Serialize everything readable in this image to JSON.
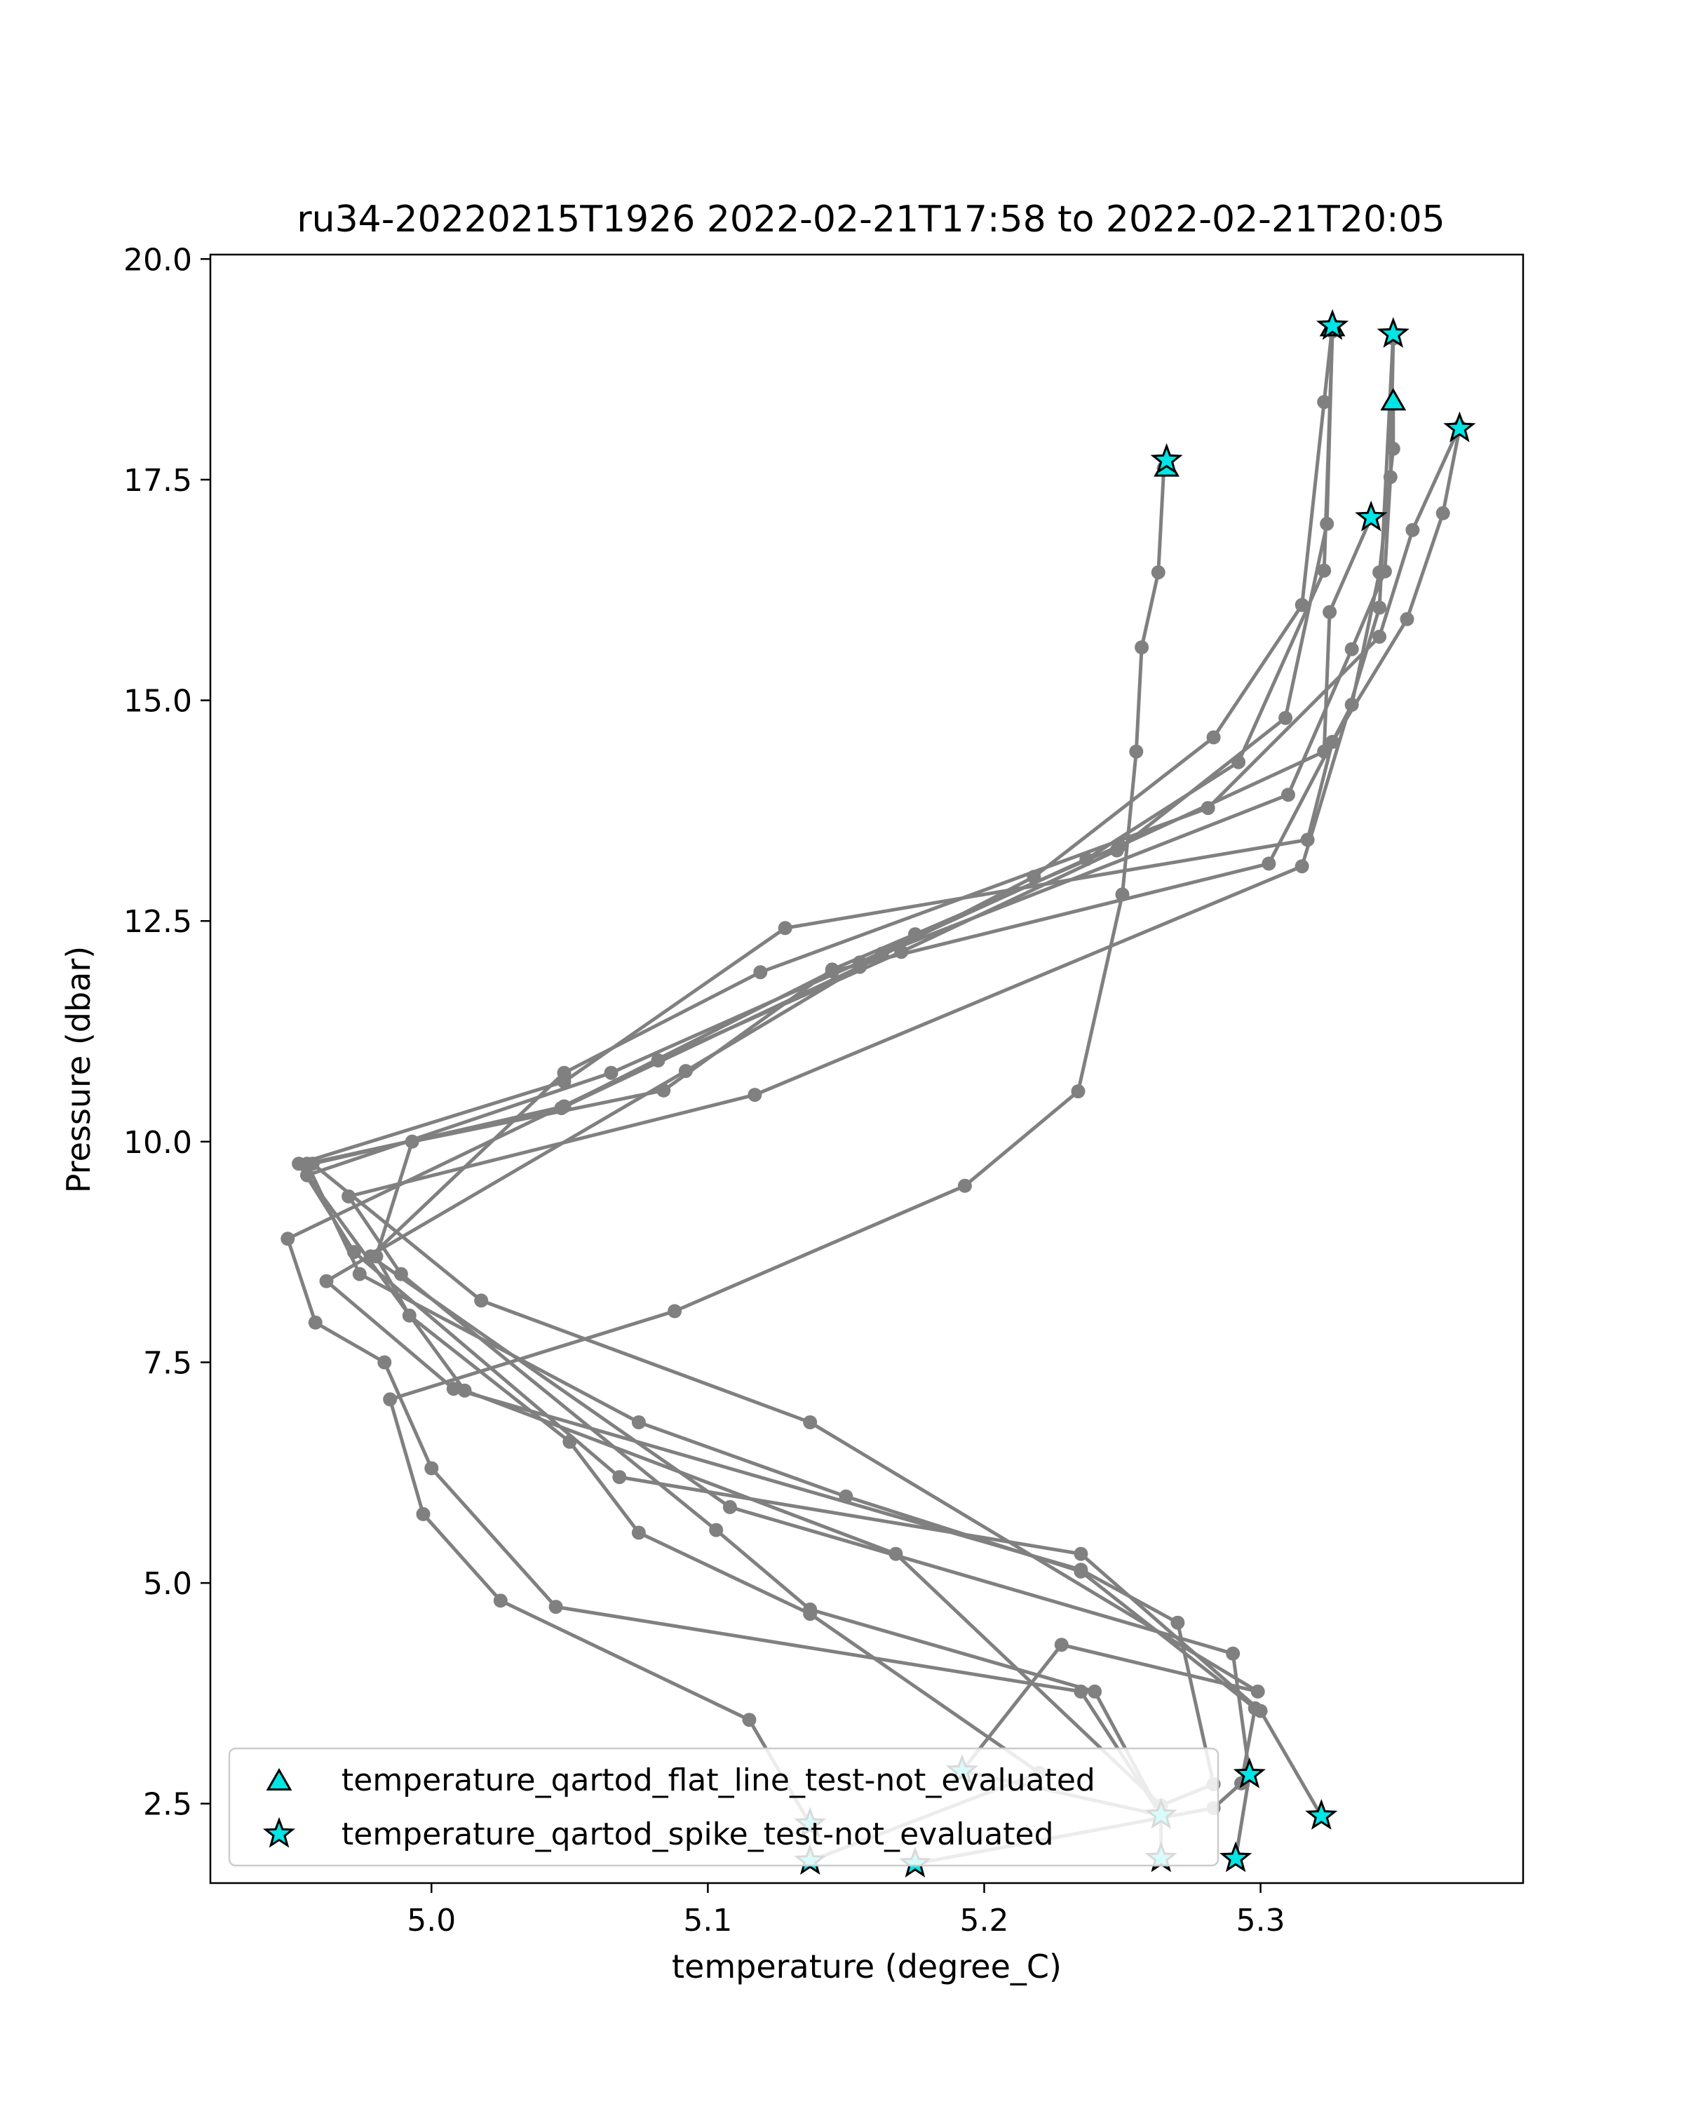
{
  "chart_data": {
    "type": "line",
    "title": "ru34-20220215T1926 2022-02-21T17:58 to 2022-02-21T20:05",
    "xlabel": "temperature (degree_C)",
    "ylabel": "Pressure (dbar)",
    "xlim": [
      4.92,
      5.395
    ],
    "ylim": [
      20.05,
      1.6
    ],
    "y_inverted": true,
    "x_ticks": [
      "5.0",
      "5.1",
      "5.2",
      "5.3"
    ],
    "y_ticks": [
      "2.5",
      "5.0",
      "7.5",
      "10.0",
      "12.5",
      "15.0",
      "17.5",
      "20.0"
    ],
    "grid": false,
    "legend_position": "lower-left",
    "line_color": "#808080",
    "marker_fill_color": "#00e5e5",
    "legend": [
      {
        "label": "temperature_qartod_flat_line_test-not_evaluated",
        "marker": "triangle"
      },
      {
        "label": "temperature_qartod_spike_test-not_evaluated",
        "marker": "star"
      }
    ],
    "profiles": [
      {
        "points": [
          [
            5.137,
            2.27
          ],
          [
            5.115,
            3.45
          ],
          [
            5.025,
            4.8
          ],
          [
            4.997,
            5.78
          ],
          [
            4.985,
            7.08
          ],
          [
            5.088,
            8.08
          ],
          [
            5.193,
            9.5
          ],
          [
            5.234,
            10.57
          ],
          [
            5.25,
            12.8
          ],
          [
            5.255,
            14.42
          ],
          [
            5.257,
            15.6
          ],
          [
            5.263,
            16.45
          ],
          [
            5.265,
            17.63
          ]
        ]
      },
      {
        "points": [
          [
            5.137,
            1.85
          ],
          [
            5.22,
            2.85
          ],
          [
            5.137,
            4.65
          ],
          [
            5.075,
            5.57
          ],
          [
            5.05,
            6.6
          ],
          [
            4.992,
            8.03
          ],
          [
            4.98,
            8.7
          ],
          [
            4.993,
            10.0
          ],
          [
            5.084,
            10.58
          ],
          [
            5.145,
            11.95
          ],
          [
            5.175,
            12.35
          ],
          [
            5.249,
            13.35
          ],
          [
            5.323,
            14.42
          ],
          [
            5.325,
            16.0
          ],
          [
            5.34,
            17.07
          ]
        ]
      },
      {
        "points": [
          [
            5.175,
            1.82
          ],
          [
            5.283,
            2.45
          ],
          [
            5.293,
            2.73
          ],
          [
            5.298,
            3.58
          ],
          [
            5.235,
            5.13
          ],
          [
            5.15,
            5.98
          ],
          [
            5.075,
            6.82
          ],
          [
            4.974,
            8.5
          ],
          [
            4.955,
            9.75
          ],
          [
            5.047,
            10.38
          ],
          [
            5.155,
            11.98
          ],
          [
            5.218,
            13.0
          ],
          [
            5.283,
            14.58
          ],
          [
            5.315,
            16.08
          ],
          [
            5.323,
            18.38
          ],
          [
            5.326,
            19.25
          ]
        ]
      },
      {
        "points": [
          [
            5.264,
            1.88
          ],
          [
            5.264,
            2.37
          ],
          [
            5.235,
            3.77
          ],
          [
            5.045,
            4.73
          ],
          [
            5.0,
            6.3
          ],
          [
            4.983,
            7.5
          ],
          [
            4.958,
            7.95
          ],
          [
            4.948,
            8.9
          ],
          [
            5.082,
            10.92
          ],
          [
            5.17,
            12.15
          ],
          [
            5.248,
            13.3
          ],
          [
            5.309,
            14.8
          ],
          [
            5.324,
            17.0
          ],
          [
            5.326,
            19.22
          ]
        ]
      },
      {
        "points": [
          [
            5.264,
            2.37
          ],
          [
            5.192,
            2.87
          ],
          [
            5.228,
            4.3
          ],
          [
            5.299,
            3.77
          ],
          [
            5.137,
            6.82
          ],
          [
            5.018,
            8.2
          ],
          [
            4.957,
            9.75
          ],
          [
            5.048,
            10.4
          ],
          [
            5.145,
            11.93
          ],
          [
            5.303,
            13.15
          ],
          [
            5.333,
            14.95
          ],
          [
            5.343,
            16.45
          ],
          [
            5.348,
            17.85
          ],
          [
            5.348,
            18.36
          ]
        ]
      },
      {
        "points": [
          [
            5.264,
            2.37
          ],
          [
            5.24,
            3.77
          ],
          [
            5.137,
            4.7
          ],
          [
            5.103,
            5.6
          ],
          [
            4.989,
            8.5
          ],
          [
            4.97,
            9.38
          ],
          [
            5.117,
            10.53
          ],
          [
            5.315,
            13.12
          ],
          [
            5.343,
            16.05
          ],
          [
            5.348,
            19.15
          ]
        ]
      },
      {
        "points": [
          [
            5.322,
            2.36
          ],
          [
            5.3,
            3.55
          ],
          [
            5.235,
            5.33
          ],
          [
            5.068,
            6.2
          ],
          [
            4.972,
            8.75
          ],
          [
            4.952,
            9.75
          ],
          [
            5.048,
            10.68
          ],
          [
            5.128,
            12.42
          ],
          [
            5.317,
            13.42
          ],
          [
            5.326,
            14.53
          ],
          [
            5.353,
            15.92
          ],
          [
            5.366,
            17.12
          ],
          [
            5.372,
            18.08
          ]
        ]
      },
      {
        "points": [
          [
            5.291,
            1.88
          ],
          [
            5.296,
            2.83
          ],
          [
            5.29,
            4.2
          ],
          [
            5.108,
            5.86
          ],
          [
            4.978,
            8.7
          ],
          [
            5.048,
            10.78
          ],
          [
            5.119,
            11.92
          ],
          [
            5.281,
            13.78
          ],
          [
            5.343,
            15.72
          ],
          [
            5.355,
            16.93
          ],
          [
            5.372,
            18.1
          ]
        ]
      },
      {
        "points": [
          [
            5.264,
            2.48
          ],
          [
            5.283,
            2.72
          ],
          [
            5.27,
            4.55
          ],
          [
            5.235,
            5.15
          ],
          [
            5.008,
            7.2
          ],
          [
            4.962,
            8.42
          ],
          [
            5.092,
            10.8
          ],
          [
            5.163,
            12.13
          ],
          [
            5.31,
            13.93
          ],
          [
            5.333,
            15.58
          ],
          [
            5.345,
            16.46
          ],
          [
            5.347,
            17.53
          ],
          [
            5.348,
            19.1
          ]
        ]
      },
      {
        "points": [
          [
            5.264,
            2.48
          ],
          [
            5.168,
            5.33
          ],
          [
            5.012,
            7.18
          ],
          [
            4.955,
            9.62
          ],
          [
            5.065,
            10.78
          ],
          [
            5.155,
            12.03
          ],
          [
            5.237,
            13.2
          ],
          [
            5.292,
            14.3
          ],
          [
            5.323,
            16.47
          ],
          [
            5.326,
            19.18
          ]
        ]
      }
    ],
    "flags": {
      "triangle": [
        [
          5.266,
          17.63
        ],
        [
          5.348,
          18.38
        ],
        [
          5.326,
          19.22
        ]
      ],
      "star": [
        [
          5.137,
          1.85
        ],
        [
          5.137,
          2.27
        ],
        [
          5.175,
          1.82
        ],
        [
          5.264,
          1.88
        ],
        [
          5.264,
          2.37
        ],
        [
          5.291,
          1.88
        ],
        [
          5.296,
          2.83
        ],
        [
          5.192,
          2.87
        ],
        [
          5.322,
          2.36
        ],
        [
          5.266,
          17.72
        ],
        [
          5.34,
          17.07
        ],
        [
          5.372,
          18.08
        ],
        [
          5.326,
          19.24
        ],
        [
          5.348,
          19.15
        ]
      ]
    }
  }
}
